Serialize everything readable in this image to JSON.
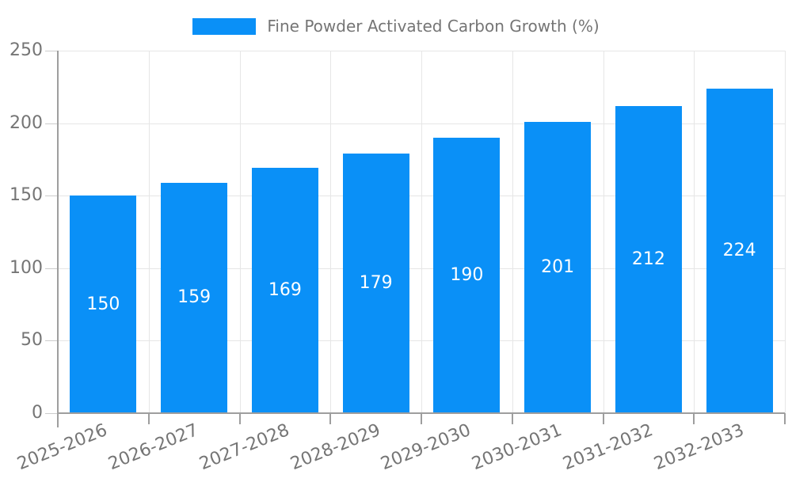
{
  "chart_data": {
    "type": "bar",
    "title": "Fine Powder Activated Carbon Growth (%)",
    "legend": {
      "position": "top",
      "entries": [
        "Fine Powder Activated Carbon Growth (%)"
      ]
    },
    "categories": [
      "2025-2026",
      "2026-2027",
      "2027-2028",
      "2028-2029",
      "2029-2030",
      "2030-2031",
      "2031-2032",
      "2032-2033"
    ],
    "series": [
      {
        "name": "Fine Powder Activated Carbon Growth (%)",
        "values": [
          150,
          159,
          169,
          179,
          190,
          201,
          212,
          224
        ]
      }
    ],
    "values": [
      150,
      159,
      169,
      179,
      190,
      201,
      212,
      224
    ],
    "data_labels": {
      "visible": true,
      "position": "inside-center",
      "values": [
        "150",
        "159",
        "169",
        "179",
        "190",
        "201",
        "212",
        "224"
      ]
    },
    "xlabel": "",
    "ylabel": "",
    "ylim": [
      0,
      250
    ],
    "yticks": [
      0,
      50,
      100,
      150,
      200,
      250
    ],
    "ytick_labels": [
      "0",
      "50",
      "100",
      "150",
      "200",
      "250"
    ],
    "grid": true,
    "x_label_rotation_deg": -22,
    "colors": {
      "bar": "#0a90f7",
      "bar_label_text": "#ffffff",
      "axis_text": "#757575",
      "grid_line": "#e6e6e6",
      "axis_line": "#9e9e9e",
      "tick_line": "#cccccc",
      "background": "#ffffff"
    }
  }
}
